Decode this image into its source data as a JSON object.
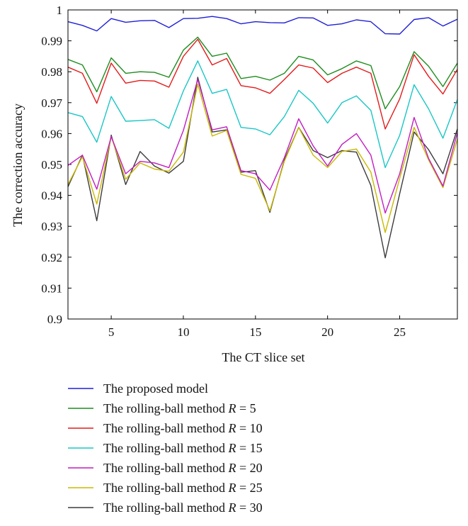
{
  "chart_data": {
    "type": "line",
    "xlabel": "The CT slice set",
    "ylabel": "The correction accuracy",
    "xlim": [
      2,
      29
    ],
    "ylim": [
      0.9,
      1.0
    ],
    "xticks": [
      5,
      10,
      15,
      20,
      25
    ],
    "yticks": [
      "0.9",
      "0.91",
      "0.92",
      "0.93",
      "0.94",
      "0.95",
      "0.96",
      "0.97",
      "0.98",
      "0.99",
      "1"
    ],
    "grid": false,
    "legend_position": "bottom",
    "x": [
      2,
      3,
      4,
      5,
      6,
      7,
      8,
      9,
      10,
      11,
      12,
      13,
      14,
      15,
      16,
      17,
      18,
      19,
      20,
      21,
      22,
      23,
      24,
      25,
      26,
      27,
      28,
      29
    ],
    "series": [
      {
        "label_prefix": "The proposed model",
        "label_r": "",
        "color": "#1f1fd6",
        "values": [
          0.9962,
          0.995,
          0.9932,
          0.9972,
          0.996,
          0.9965,
          0.9966,
          0.9943,
          0.9972,
          0.9973,
          0.9979,
          0.9972,
          0.9955,
          0.9962,
          0.9959,
          0.9958,
          0.9975,
          0.9974,
          0.995,
          0.9955,
          0.9968,
          0.9962,
          0.9923,
          0.9922,
          0.9969,
          0.9975,
          0.9948,
          0.997
        ]
      },
      {
        "label_prefix": "The rolling-ball method ",
        "label_r": "5",
        "color": "#1e8c1e",
        "values": [
          0.984,
          0.9822,
          0.9735,
          0.9845,
          0.9795,
          0.98,
          0.9798,
          0.9782,
          0.987,
          0.9912,
          0.985,
          0.986,
          0.9778,
          0.9785,
          0.9773,
          0.9795,
          0.985,
          0.9838,
          0.979,
          0.981,
          0.9835,
          0.982,
          0.968,
          0.9752,
          0.9865,
          0.9818,
          0.9752,
          0.9828
        ]
      },
      {
        "label_prefix": "The rolling-ball method ",
        "label_r": "10",
        "color": "#e31b1b",
        "values": [
          0.9815,
          0.9795,
          0.9698,
          0.9828,
          0.9763,
          0.9772,
          0.977,
          0.975,
          0.985,
          0.9905,
          0.9822,
          0.9843,
          0.9755,
          0.9748,
          0.973,
          0.9775,
          0.9822,
          0.9812,
          0.9765,
          0.9795,
          0.9815,
          0.9795,
          0.9615,
          0.9712,
          0.9855,
          0.9785,
          0.9728,
          0.9808
        ]
      },
      {
        "label_prefix": "The rolling-ball method ",
        "label_r": "15",
        "color": "#1ac6c6",
        "values": [
          0.9668,
          0.9655,
          0.9572,
          0.972,
          0.964,
          0.9642,
          0.9645,
          0.9617,
          0.9738,
          0.9835,
          0.973,
          0.9743,
          0.962,
          0.9615,
          0.9596,
          0.9655,
          0.974,
          0.9698,
          0.9634,
          0.97,
          0.9722,
          0.9675,
          0.949,
          0.9594,
          0.9758,
          0.968,
          0.9585,
          0.971
        ]
      },
      {
        "label_prefix": "The rolling-ball method ",
        "label_r": "20",
        "color": "#c21dc2",
        "values": [
          0.9497,
          0.953,
          0.942,
          0.959,
          0.947,
          0.951,
          0.9505,
          0.949,
          0.961,
          0.9775,
          0.9612,
          0.9622,
          0.948,
          0.947,
          0.9417,
          0.9522,
          0.9648,
          0.956,
          0.9495,
          0.9565,
          0.96,
          0.953,
          0.9343,
          0.947,
          0.9652,
          0.952,
          0.943,
          0.9603
        ]
      },
      {
        "label_prefix": "The rolling-ball method ",
        "label_r": "25",
        "color": "#c9b800",
        "values": [
          0.9435,
          0.9525,
          0.9372,
          0.959,
          0.9452,
          0.9505,
          0.9485,
          0.9478,
          0.954,
          0.976,
          0.9592,
          0.961,
          0.9468,
          0.9455,
          0.935,
          0.951,
          0.962,
          0.953,
          0.949,
          0.9542,
          0.955,
          0.9475,
          0.928,
          0.9455,
          0.962,
          0.9515,
          0.9425,
          0.9582
        ]
      },
      {
        "label_prefix": "The rolling-ball method ",
        "label_r": "30",
        "color": "#3c3c3c",
        "values": [
          0.9428,
          0.953,
          0.9318,
          0.9595,
          0.9435,
          0.9542,
          0.9495,
          0.9472,
          0.951,
          0.9782,
          0.9605,
          0.9612,
          0.9475,
          0.948,
          0.9345,
          0.9515,
          0.962,
          0.9545,
          0.9522,
          0.9545,
          0.954,
          0.9432,
          0.9198,
          0.9405,
          0.9605,
          0.9548,
          0.947,
          0.9615
        ]
      }
    ]
  }
}
